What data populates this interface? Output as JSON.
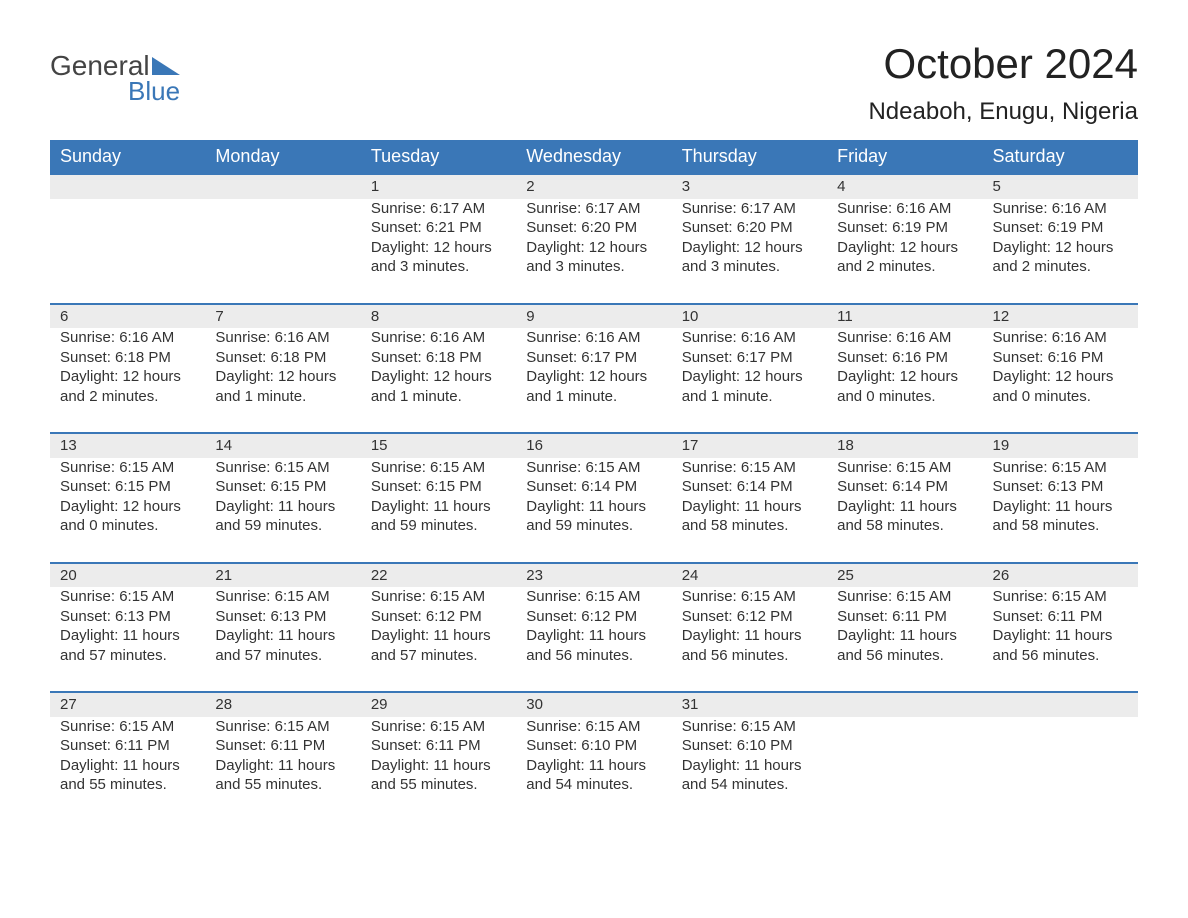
{
  "logo": {
    "top": "General",
    "bottom": "Blue"
  },
  "title": "October 2024",
  "location": "Ndeaboh, Enugu, Nigeria",
  "colors": {
    "header_bg": "#3a77b7",
    "header_text": "#ffffff",
    "daynum_bg": "#ececec",
    "daynum_border": "#3a77b7",
    "body_text": "#333333",
    "logo_blue": "#3a77b7",
    "logo_gray": "#444444",
    "page_bg": "#ffffff"
  },
  "typography": {
    "title_fontsize": 42,
    "location_fontsize": 24,
    "header_fontsize": 18,
    "daynum_fontsize": 18,
    "cell_fontsize": 15
  },
  "day_headers": [
    "Sunday",
    "Monday",
    "Tuesday",
    "Wednesday",
    "Thursday",
    "Friday",
    "Saturday"
  ],
  "weeks": [
    [
      null,
      null,
      {
        "n": "1",
        "sr": "6:17 AM",
        "ss": "6:21 PM",
        "dl": "12 hours and 3 minutes."
      },
      {
        "n": "2",
        "sr": "6:17 AM",
        "ss": "6:20 PM",
        "dl": "12 hours and 3 minutes."
      },
      {
        "n": "3",
        "sr": "6:17 AM",
        "ss": "6:20 PM",
        "dl": "12 hours and 3 minutes."
      },
      {
        "n": "4",
        "sr": "6:16 AM",
        "ss": "6:19 PM",
        "dl": "12 hours and 2 minutes."
      },
      {
        "n": "5",
        "sr": "6:16 AM",
        "ss": "6:19 PM",
        "dl": "12 hours and 2 minutes."
      }
    ],
    [
      {
        "n": "6",
        "sr": "6:16 AM",
        "ss": "6:18 PM",
        "dl": "12 hours and 2 minutes."
      },
      {
        "n": "7",
        "sr": "6:16 AM",
        "ss": "6:18 PM",
        "dl": "12 hours and 1 minute."
      },
      {
        "n": "8",
        "sr": "6:16 AM",
        "ss": "6:18 PM",
        "dl": "12 hours and 1 minute."
      },
      {
        "n": "9",
        "sr": "6:16 AM",
        "ss": "6:17 PM",
        "dl": "12 hours and 1 minute."
      },
      {
        "n": "10",
        "sr": "6:16 AM",
        "ss": "6:17 PM",
        "dl": "12 hours and 1 minute."
      },
      {
        "n": "11",
        "sr": "6:16 AM",
        "ss": "6:16 PM",
        "dl": "12 hours and 0 minutes."
      },
      {
        "n": "12",
        "sr": "6:16 AM",
        "ss": "6:16 PM",
        "dl": "12 hours and 0 minutes."
      }
    ],
    [
      {
        "n": "13",
        "sr": "6:15 AM",
        "ss": "6:15 PM",
        "dl": "12 hours and 0 minutes."
      },
      {
        "n": "14",
        "sr": "6:15 AM",
        "ss": "6:15 PM",
        "dl": "11 hours and 59 minutes."
      },
      {
        "n": "15",
        "sr": "6:15 AM",
        "ss": "6:15 PM",
        "dl": "11 hours and 59 minutes."
      },
      {
        "n": "16",
        "sr": "6:15 AM",
        "ss": "6:14 PM",
        "dl": "11 hours and 59 minutes."
      },
      {
        "n": "17",
        "sr": "6:15 AM",
        "ss": "6:14 PM",
        "dl": "11 hours and 58 minutes."
      },
      {
        "n": "18",
        "sr": "6:15 AM",
        "ss": "6:14 PM",
        "dl": "11 hours and 58 minutes."
      },
      {
        "n": "19",
        "sr": "6:15 AM",
        "ss": "6:13 PM",
        "dl": "11 hours and 58 minutes."
      }
    ],
    [
      {
        "n": "20",
        "sr": "6:15 AM",
        "ss": "6:13 PM",
        "dl": "11 hours and 57 minutes."
      },
      {
        "n": "21",
        "sr": "6:15 AM",
        "ss": "6:13 PM",
        "dl": "11 hours and 57 minutes."
      },
      {
        "n": "22",
        "sr": "6:15 AM",
        "ss": "6:12 PM",
        "dl": "11 hours and 57 minutes."
      },
      {
        "n": "23",
        "sr": "6:15 AM",
        "ss": "6:12 PM",
        "dl": "11 hours and 56 minutes."
      },
      {
        "n": "24",
        "sr": "6:15 AM",
        "ss": "6:12 PM",
        "dl": "11 hours and 56 minutes."
      },
      {
        "n": "25",
        "sr": "6:15 AM",
        "ss": "6:11 PM",
        "dl": "11 hours and 56 minutes."
      },
      {
        "n": "26",
        "sr": "6:15 AM",
        "ss": "6:11 PM",
        "dl": "11 hours and 56 minutes."
      }
    ],
    [
      {
        "n": "27",
        "sr": "6:15 AM",
        "ss": "6:11 PM",
        "dl": "11 hours and 55 minutes."
      },
      {
        "n": "28",
        "sr": "6:15 AM",
        "ss": "6:11 PM",
        "dl": "11 hours and 55 minutes."
      },
      {
        "n": "29",
        "sr": "6:15 AM",
        "ss": "6:11 PM",
        "dl": "11 hours and 55 minutes."
      },
      {
        "n": "30",
        "sr": "6:15 AM",
        "ss": "6:10 PM",
        "dl": "11 hours and 54 minutes."
      },
      {
        "n": "31",
        "sr": "6:15 AM",
        "ss": "6:10 PM",
        "dl": "11 hours and 54 minutes."
      },
      null,
      null
    ]
  ],
  "labels": {
    "sunrise": "Sunrise:",
    "sunset": "Sunset:",
    "daylight": "Daylight:"
  }
}
